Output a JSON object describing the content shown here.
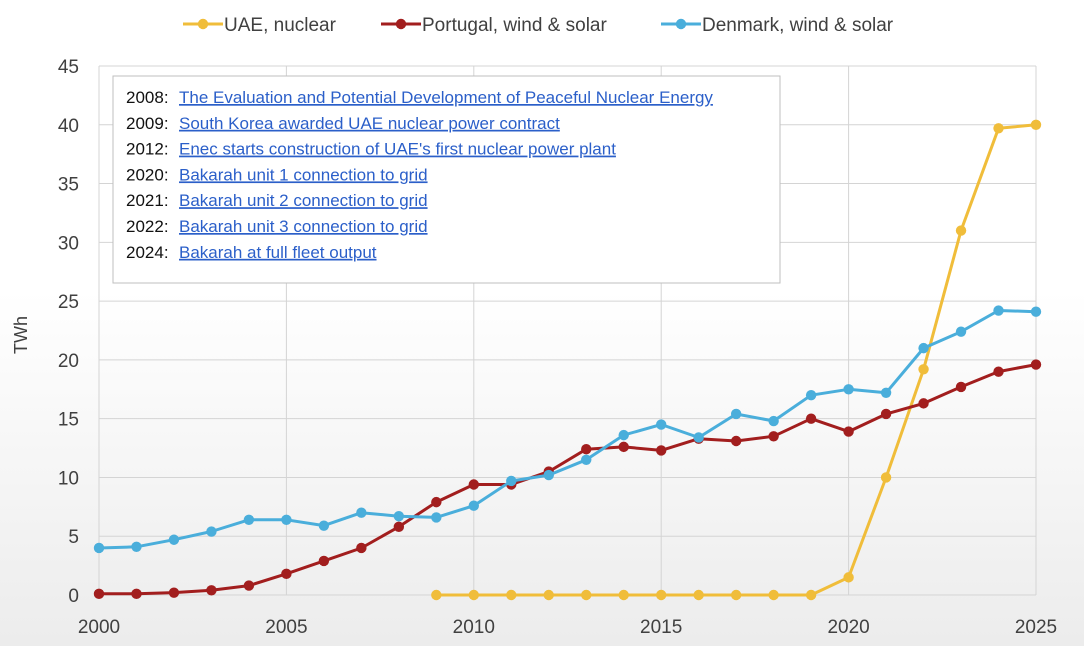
{
  "chart_data": {
    "type": "line",
    "xlabel": "",
    "ylabel": "TWh",
    "xlim": [
      2000,
      2025
    ],
    "ylim": [
      0,
      45
    ],
    "x_ticks": [
      2000,
      2005,
      2010,
      2015,
      2020,
      2025
    ],
    "y_ticks": [
      0,
      5,
      10,
      15,
      20,
      25,
      30,
      35,
      40,
      45
    ],
    "grid": true,
    "legend_position": "top",
    "series": [
      {
        "name": "UAE, nuclear",
        "color": "#f0bd3a",
        "x": [
          2009,
          2010,
          2011,
          2012,
          2013,
          2014,
          2015,
          2016,
          2017,
          2018,
          2019,
          2020,
          2021,
          2022,
          2023,
          2024,
          2025
        ],
        "values": [
          0,
          0,
          0,
          0,
          0,
          0,
          0,
          0,
          0,
          0,
          0,
          1.5,
          10,
          19.2,
          31,
          39.7,
          40
        ]
      },
      {
        "name": "Portugal, wind & solar",
        "color": "#a21e1e",
        "x": [
          2000,
          2001,
          2002,
          2003,
          2004,
          2005,
          2006,
          2007,
          2008,
          2009,
          2010,
          2011,
          2012,
          2013,
          2014,
          2015,
          2016,
          2017,
          2018,
          2019,
          2020,
          2021,
          2022,
          2023,
          2024,
          2025
        ],
        "values": [
          0.1,
          0.1,
          0.2,
          0.4,
          0.8,
          1.8,
          2.9,
          4.0,
          5.8,
          7.9,
          9.4,
          9.4,
          10.5,
          12.4,
          12.6,
          12.3,
          13.3,
          13.1,
          13.5,
          15.0,
          13.9,
          15.4,
          16.3,
          17.7,
          19.0,
          19.6
        ]
      },
      {
        "name": "Denmark, wind & solar",
        "color": "#4aaedb",
        "x": [
          2000,
          2001,
          2002,
          2003,
          2004,
          2005,
          2006,
          2007,
          2008,
          2009,
          2010,
          2011,
          2012,
          2013,
          2014,
          2015,
          2016,
          2017,
          2018,
          2019,
          2020,
          2021,
          2022,
          2023,
          2024,
          2025
        ],
        "values": [
          4.0,
          4.1,
          4.7,
          5.4,
          6.4,
          6.4,
          5.9,
          7.0,
          6.7,
          6.6,
          7.6,
          9.7,
          10.2,
          11.5,
          13.6,
          14.5,
          13.4,
          15.4,
          14.8,
          17.0,
          17.5,
          17.2,
          21.0,
          22.4,
          24.2,
          24.1
        ]
      }
    ],
    "annotations": [
      {
        "year": "2008:",
        "text": "The Evaluation and Potential Development of Peaceful Nuclear Energy"
      },
      {
        "year": "2009:",
        "text": "South Korea awarded UAE nuclear power contract"
      },
      {
        "year": "2012:",
        "text": "Enec starts construction of UAE's first nuclear power plant"
      },
      {
        "year": "2020:",
        "text": "Bakarah unit 1 connection to grid"
      },
      {
        "year": "2021:",
        "text": "Bakarah unit 2 connection to grid"
      },
      {
        "year": "2022:",
        "text": "Bakarah unit 3 connection to grid"
      },
      {
        "year": "2024:",
        "text": "Bakarah at full fleet output"
      }
    ]
  }
}
